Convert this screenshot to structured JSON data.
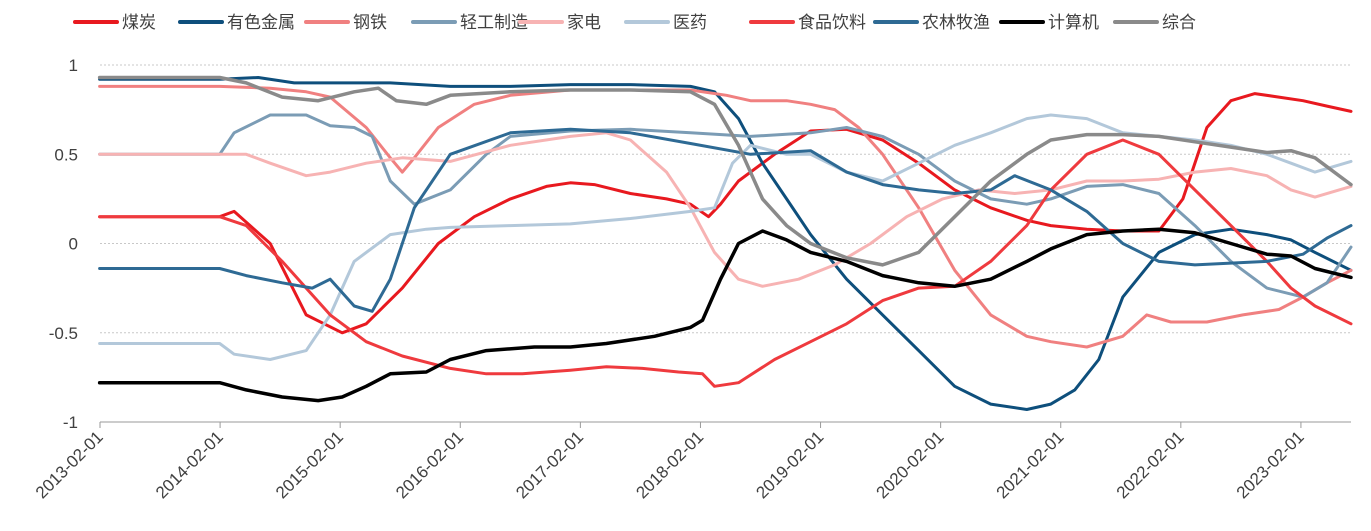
{
  "chart_data": {
    "type": "line",
    "title": "",
    "xlabel": "",
    "ylabel": "",
    "ylim": [
      -1,
      1
    ],
    "yticks": [
      1,
      0.5,
      0,
      -0.5,
      -1
    ],
    "ytick_labels": [
      "1",
      "0.5",
      "0",
      "-0.5",
      "-1"
    ],
    "xlim": [
      2013.083,
      2023.5
    ],
    "xticks": [
      2013.083,
      2014.083,
      2015.083,
      2016.083,
      2017.083,
      2018.083,
      2019.083,
      2020.083,
      2021.083,
      2022.083,
      2023.083
    ],
    "xtick_labels": [
      "2013-02-01",
      "2014-02-01",
      "2015-02-01",
      "2016-02-01",
      "2017-02-01",
      "2018-02-01",
      "2019-02-01",
      "2020-02-01",
      "2021-02-01",
      "2022-02-01",
      "2023-02-01"
    ],
    "grid": "horizontal dashed",
    "legend_position": "top",
    "series": [
      {
        "name": "煤炭",
        "color": "#e8191f",
        "width": 3,
        "x": [
          2013.08,
          2014.08,
          2014.2,
          2014.5,
          2014.8,
          2015.1,
          2015.3,
          2015.6,
          2015.9,
          2016.2,
          2016.5,
          2016.8,
          2017.0,
          2017.2,
          2017.5,
          2017.8,
          2018.0,
          2018.15,
          2018.25,
          2018.4,
          2018.7,
          2019.0,
          2019.3,
          2019.6,
          2019.9,
          2020.2,
          2020.5,
          2020.8,
          2021.0,
          2021.3,
          2021.6,
          2021.9,
          2022.1,
          2022.3,
          2022.5,
          2022.7,
          2022.9,
          2023.1,
          2023.3,
          2023.5
        ],
        "y": [
          0.15,
          0.15,
          0.18,
          0.0,
          -0.4,
          -0.5,
          -0.45,
          -0.25,
          0.0,
          0.15,
          0.25,
          0.32,
          0.34,
          0.33,
          0.28,
          0.25,
          0.22,
          0.15,
          0.22,
          0.35,
          0.5,
          0.63,
          0.64,
          0.58,
          0.45,
          0.3,
          0.2,
          0.13,
          0.1,
          0.08,
          0.07,
          0.07,
          0.25,
          0.65,
          0.8,
          0.84,
          0.82,
          0.8,
          0.77,
          0.74
        ]
      },
      {
        "name": "有色金属",
        "color": "#0e4f7c",
        "width": 3,
        "x": [
          2013.08,
          2014.08,
          2014.4,
          2014.7,
          2015.0,
          2015.5,
          2016.0,
          2016.5,
          2017.0,
          2017.5,
          2018.0,
          2018.2,
          2018.4,
          2018.6,
          2018.8,
          2019.0,
          2019.3,
          2019.6,
          2019.9,
          2020.2,
          2020.5,
          2020.8,
          2021.0,
          2021.2,
          2021.4,
          2021.6,
          2021.9,
          2022.2,
          2022.5,
          2022.8,
          2023.0,
          2023.2,
          2023.5
        ],
        "y": [
          0.92,
          0.92,
          0.93,
          0.9,
          0.9,
          0.9,
          0.88,
          0.88,
          0.89,
          0.89,
          0.88,
          0.85,
          0.7,
          0.45,
          0.25,
          0.05,
          -0.2,
          -0.4,
          -0.6,
          -0.8,
          -0.9,
          -0.93,
          -0.9,
          -0.82,
          -0.65,
          -0.3,
          -0.05,
          0.05,
          0.08,
          0.05,
          0.02,
          -0.05,
          -0.15
        ]
      },
      {
        "name": "钢铁",
        "color": "#f08080",
        "width": 3,
        "x": [
          2013.08,
          2014.08,
          2014.5,
          2014.8,
          2015.0,
          2015.3,
          2015.5,
          2015.6,
          2015.7,
          2015.9,
          2016.2,
          2016.5,
          2017.0,
          2017.5,
          2018.0,
          2018.3,
          2018.5,
          2018.8,
          2019.0,
          2019.2,
          2019.4,
          2019.6,
          2019.9,
          2020.2,
          2020.5,
          2020.8,
          2021.0,
          2021.3,
          2021.6,
          2021.8,
          2022.0,
          2022.3,
          2022.6,
          2022.9,
          2023.1,
          2023.3,
          2023.5
        ],
        "y": [
          0.88,
          0.88,
          0.87,
          0.85,
          0.82,
          0.65,
          0.48,
          0.4,
          0.48,
          0.65,
          0.78,
          0.83,
          0.86,
          0.86,
          0.86,
          0.83,
          0.8,
          0.8,
          0.78,
          0.75,
          0.65,
          0.5,
          0.2,
          -0.15,
          -0.4,
          -0.52,
          -0.55,
          -0.58,
          -0.52,
          -0.4,
          -0.44,
          -0.44,
          -0.4,
          -0.37,
          -0.3,
          -0.22,
          -0.15
        ]
      },
      {
        "name": "轻工制造",
        "color": "#7b9cb5",
        "width": 3,
        "x": [
          2013.08,
          2014.08,
          2014.2,
          2014.5,
          2014.8,
          2015.0,
          2015.2,
          2015.35,
          2015.5,
          2015.7,
          2016.0,
          2016.3,
          2016.5,
          2017.0,
          2017.5,
          2018.0,
          2018.5,
          2019.0,
          2019.3,
          2019.6,
          2019.9,
          2020.2,
          2020.5,
          2020.8,
          2021.0,
          2021.3,
          2021.6,
          2021.9,
          2022.2,
          2022.5,
          2022.8,
          2023.1,
          2023.3,
          2023.5
        ],
        "y": [
          0.5,
          0.5,
          0.62,
          0.72,
          0.72,
          0.66,
          0.65,
          0.6,
          0.35,
          0.22,
          0.3,
          0.5,
          0.6,
          0.63,
          0.64,
          0.62,
          0.6,
          0.62,
          0.65,
          0.6,
          0.5,
          0.35,
          0.25,
          0.22,
          0.25,
          0.32,
          0.33,
          0.28,
          0.1,
          -0.1,
          -0.25,
          -0.3,
          -0.22,
          -0.02
        ]
      },
      {
        "name": "家电",
        "color": "#f7b3b3",
        "width": 3,
        "x": [
          2013.08,
          2014.08,
          2014.3,
          2014.5,
          2014.8,
          2015.0,
          2015.3,
          2015.6,
          2016.0,
          2016.5,
          2017.0,
          2017.3,
          2017.5,
          2017.8,
          2018.0,
          2018.2,
          2018.4,
          2018.6,
          2018.9,
          2019.2,
          2019.5,
          2019.8,
          2020.1,
          2020.4,
          2020.7,
          2021.0,
          2021.3,
          2021.6,
          2021.9,
          2022.2,
          2022.5,
          2022.8,
          2023.0,
          2023.2,
          2023.5
        ],
        "y": [
          0.5,
          0.5,
          0.5,
          0.45,
          0.38,
          0.4,
          0.45,
          0.48,
          0.46,
          0.55,
          0.6,
          0.62,
          0.58,
          0.4,
          0.2,
          -0.05,
          -0.2,
          -0.24,
          -0.2,
          -0.12,
          0.0,
          0.15,
          0.25,
          0.3,
          0.28,
          0.3,
          0.35,
          0.35,
          0.36,
          0.4,
          0.42,
          0.38,
          0.3,
          0.26,
          0.32
        ]
      },
      {
        "name": "医药",
        "color": "#b3c8da",
        "width": 3,
        "x": [
          2013.08,
          2014.08,
          2014.2,
          2014.5,
          2014.8,
          2015.0,
          2015.2,
          2015.5,
          2015.8,
          2016.0,
          2016.5,
          2017.0,
          2017.5,
          2018.0,
          2018.2,
          2018.35,
          2018.5,
          2018.8,
          2019.0,
          2019.3,
          2019.6,
          2019.9,
          2020.2,
          2020.5,
          2020.8,
          2021.0,
          2021.3,
          2021.6,
          2021.9,
          2022.2,
          2022.5,
          2022.8,
          2023.0,
          2023.2,
          2023.5
        ],
        "y": [
          -0.56,
          -0.56,
          -0.62,
          -0.65,
          -0.6,
          -0.4,
          -0.1,
          0.05,
          0.08,
          0.09,
          0.1,
          0.11,
          0.14,
          0.18,
          0.2,
          0.45,
          0.55,
          0.5,
          0.5,
          0.4,
          0.35,
          0.45,
          0.55,
          0.62,
          0.7,
          0.72,
          0.7,
          0.62,
          0.6,
          0.58,
          0.55,
          0.5,
          0.45,
          0.4,
          0.46
        ]
      },
      {
        "name": "食品饮料",
        "color": "#ef3a3e",
        "width": 3,
        "x": [
          2013.08,
          2014.08,
          2014.3,
          2014.6,
          2015.0,
          2015.3,
          2015.6,
          2016.0,
          2016.3,
          2016.6,
          2017.0,
          2017.3,
          2017.6,
          2017.9,
          2018.1,
          2018.2,
          2018.4,
          2018.7,
          2019.0,
          2019.3,
          2019.6,
          2019.9,
          2020.2,
          2020.5,
          2020.8,
          2021.0,
          2021.3,
          2021.6,
          2021.9,
          2022.2,
          2022.5,
          2022.8,
          2023.0,
          2023.2,
          2023.5
        ],
        "y": [
          0.15,
          0.15,
          0.1,
          -0.1,
          -0.4,
          -0.55,
          -0.63,
          -0.7,
          -0.73,
          -0.73,
          -0.71,
          -0.69,
          -0.7,
          -0.72,
          -0.73,
          -0.8,
          -0.78,
          -0.65,
          -0.55,
          -0.45,
          -0.32,
          -0.25,
          -0.24,
          -0.1,
          0.1,
          0.3,
          0.5,
          0.58,
          0.5,
          0.3,
          0.1,
          -0.1,
          -0.25,
          -0.35,
          -0.45
        ]
      },
      {
        "name": "农林牧渔",
        "color": "#2e6a94",
        "width": 3,
        "x": [
          2013.08,
          2014.08,
          2014.3,
          2014.6,
          2014.85,
          2015.0,
          2015.2,
          2015.35,
          2015.5,
          2015.7,
          2016.0,
          2016.5,
          2017.0,
          2017.5,
          2018.0,
          2018.5,
          2019.0,
          2019.3,
          2019.6,
          2019.9,
          2020.2,
          2020.5,
          2020.7,
          2021.0,
          2021.3,
          2021.6,
          2021.9,
          2022.2,
          2022.5,
          2022.8,
          2023.1,
          2023.3,
          2023.5
        ],
        "y": [
          -0.14,
          -0.14,
          -0.18,
          -0.22,
          -0.25,
          -0.2,
          -0.35,
          -0.38,
          -0.2,
          0.2,
          0.5,
          0.62,
          0.64,
          0.62,
          0.56,
          0.5,
          0.52,
          0.4,
          0.33,
          0.3,
          0.28,
          0.3,
          0.38,
          0.3,
          0.18,
          0.0,
          -0.1,
          -0.12,
          -0.11,
          -0.1,
          -0.06,
          0.03,
          0.1
        ]
      },
      {
        "name": "计算机",
        "color": "#000000",
        "width": 3.5,
        "x": [
          2013.08,
          2014.08,
          2014.3,
          2014.6,
          2014.9,
          2015.1,
          2015.3,
          2015.5,
          2015.8,
          2016.0,
          2016.3,
          2016.7,
          2017.0,
          2017.3,
          2017.7,
          2018.0,
          2018.1,
          2018.25,
          2018.4,
          2018.6,
          2018.8,
          2019.0,
          2019.3,
          2019.6,
          2019.9,
          2020.2,
          2020.5,
          2020.8,
          2021.0,
          2021.3,
          2021.6,
          2021.9,
          2022.2,
          2022.5,
          2022.8,
          2023.0,
          2023.2,
          2023.5
        ],
        "y": [
          -0.78,
          -0.78,
          -0.82,
          -0.86,
          -0.88,
          -0.86,
          -0.8,
          -0.73,
          -0.72,
          -0.65,
          -0.6,
          -0.58,
          -0.58,
          -0.56,
          -0.52,
          -0.47,
          -0.43,
          -0.2,
          0.0,
          0.07,
          0.02,
          -0.05,
          -0.1,
          -0.18,
          -0.22,
          -0.24,
          -0.2,
          -0.1,
          -0.03,
          0.05,
          0.07,
          0.08,
          0.06,
          0.0,
          -0.06,
          -0.07,
          -0.14,
          -0.19
        ]
      },
      {
        "name": "综合",
        "color": "#8a8a8a",
        "width": 3.5,
        "x": [
          2013.08,
          2014.08,
          2014.3,
          2014.6,
          2014.9,
          2015.2,
          2015.4,
          2015.55,
          2015.8,
          2016.0,
          2016.5,
          2017.0,
          2017.5,
          2018.0,
          2018.2,
          2018.4,
          2018.6,
          2018.8,
          2019.0,
          2019.3,
          2019.6,
          2019.9,
          2020.2,
          2020.5,
          2020.8,
          2021.0,
          2021.3,
          2021.6,
          2021.9,
          2022.2,
          2022.5,
          2022.8,
          2023.0,
          2023.2,
          2023.5
        ],
        "y": [
          0.93,
          0.93,
          0.9,
          0.82,
          0.8,
          0.85,
          0.87,
          0.8,
          0.78,
          0.83,
          0.85,
          0.86,
          0.86,
          0.85,
          0.78,
          0.55,
          0.25,
          0.1,
          0.0,
          -0.08,
          -0.12,
          -0.05,
          0.15,
          0.35,
          0.5,
          0.58,
          0.61,
          0.61,
          0.6,
          0.57,
          0.54,
          0.51,
          0.52,
          0.48,
          0.33
        ]
      }
    ]
  }
}
